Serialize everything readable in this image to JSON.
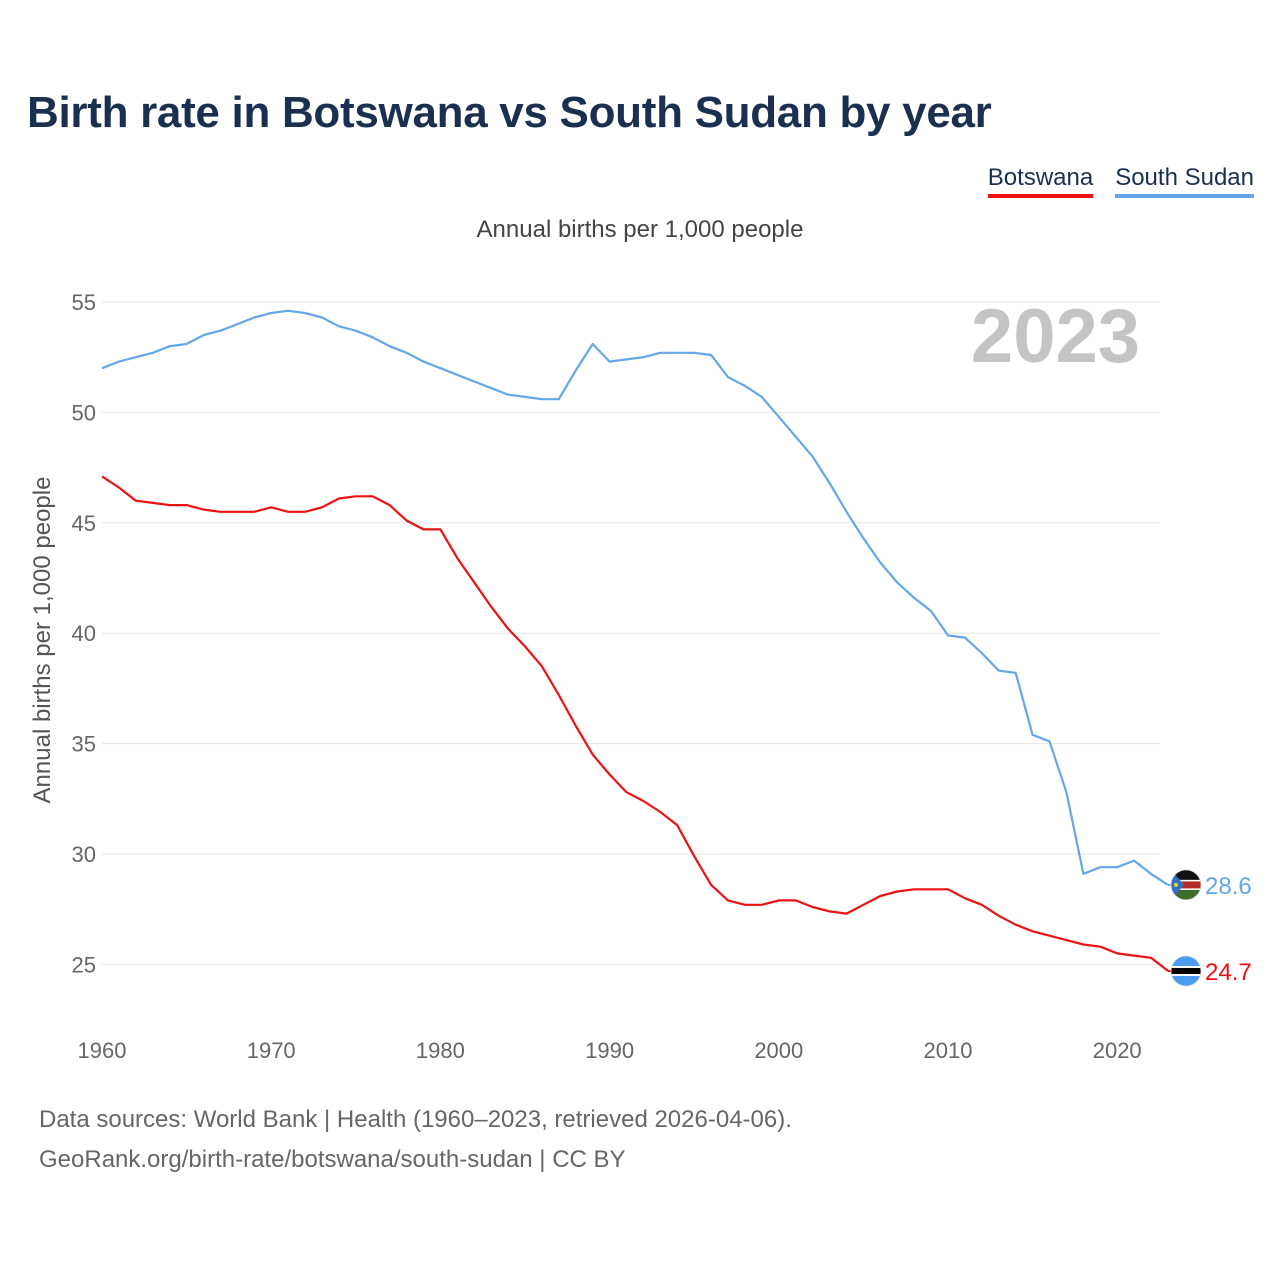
{
  "title": "Birth rate in Botswana vs South Sudan by year",
  "legend": [
    {
      "name": "Botswana",
      "color": "#ee1111"
    },
    {
      "name": "South Sudan",
      "color": "#64a6e8"
    }
  ],
  "subtitle": "Annual births per 1,000 people",
  "year_watermark": "2023",
  "footer": {
    "line1": "Data sources: World Bank | Health (1960–2023, retrieved 2026-04-06).",
    "line2": "GeoRank.org/birth-rate/botswana/south-sudan | CC BY"
  },
  "chart_data": {
    "type": "line",
    "title": "Birth rate in Botswana vs South Sudan by year",
    "xlabel": "",
    "ylabel": "Annual births per 1,000 people",
    "xlim": [
      1960,
      2024
    ],
    "ylim": [
      22.5,
      55
    ],
    "xticks": [
      1960,
      1970,
      1980,
      1990,
      2000,
      2010,
      2020
    ],
    "yticks": [
      25,
      30,
      35,
      40,
      45,
      50,
      55
    ],
    "x": [
      1960,
      1961,
      1962,
      1963,
      1964,
      1965,
      1966,
      1967,
      1968,
      1969,
      1970,
      1971,
      1972,
      1973,
      1974,
      1975,
      1976,
      1977,
      1978,
      1979,
      1980,
      1981,
      1982,
      1983,
      1984,
      1985,
      1986,
      1987,
      1988,
      1989,
      1990,
      1991,
      1992,
      1993,
      1994,
      1995,
      1996,
      1997,
      1998,
      1999,
      2000,
      2001,
      2002,
      2003,
      2004,
      2005,
      2006,
      2007,
      2008,
      2009,
      2010,
      2011,
      2012,
      2013,
      2014,
      2015,
      2016,
      2017,
      2018,
      2019,
      2020,
      2021,
      2022,
      2023
    ],
    "series": [
      {
        "name": "Botswana",
        "color": "#ee1111",
        "end_label": "24.7",
        "values": [
          47.1,
          46.6,
          46.0,
          45.9,
          45.8,
          45.8,
          45.6,
          45.5,
          45.5,
          45.5,
          45.7,
          45.5,
          45.5,
          45.7,
          46.1,
          46.2,
          46.2,
          45.8,
          45.1,
          44.7,
          44.7,
          43.4,
          42.3,
          41.2,
          40.2,
          39.4,
          38.5,
          37.2,
          35.8,
          34.5,
          33.6,
          32.8,
          32.4,
          31.9,
          31.3,
          29.9,
          28.6,
          27.9,
          27.7,
          27.7,
          27.9,
          27.9,
          27.6,
          27.4,
          27.3,
          27.7,
          28.1,
          28.3,
          28.4,
          28.4,
          28.4,
          28.0,
          27.7,
          27.2,
          26.8,
          26.5,
          26.3,
          26.1,
          25.9,
          25.8,
          25.5,
          25.4,
          25.3,
          24.7
        ]
      },
      {
        "name": "South Sudan",
        "color": "#64a6e8",
        "end_label": "28.6",
        "values": [
          52.0,
          52.3,
          52.5,
          52.7,
          53.0,
          53.1,
          53.5,
          53.7,
          54.0,
          54.3,
          54.5,
          54.6,
          54.5,
          54.3,
          53.9,
          53.7,
          53.4,
          53.0,
          52.7,
          52.3,
          52.0,
          51.7,
          51.4,
          51.1,
          50.8,
          50.7,
          50.6,
          50.6,
          51.9,
          53.1,
          52.3,
          52.4,
          52.5,
          52.7,
          52.7,
          52.7,
          52.6,
          51.6,
          51.2,
          50.7,
          49.8,
          48.9,
          48.0,
          46.8,
          45.5,
          44.3,
          43.2,
          42.3,
          41.6,
          41.0,
          39.9,
          39.8,
          39.1,
          38.3,
          38.2,
          35.4,
          35.1,
          32.8,
          29.1,
          29.4,
          29.4,
          29.7,
          29.1,
          28.6
        ]
      }
    ]
  }
}
